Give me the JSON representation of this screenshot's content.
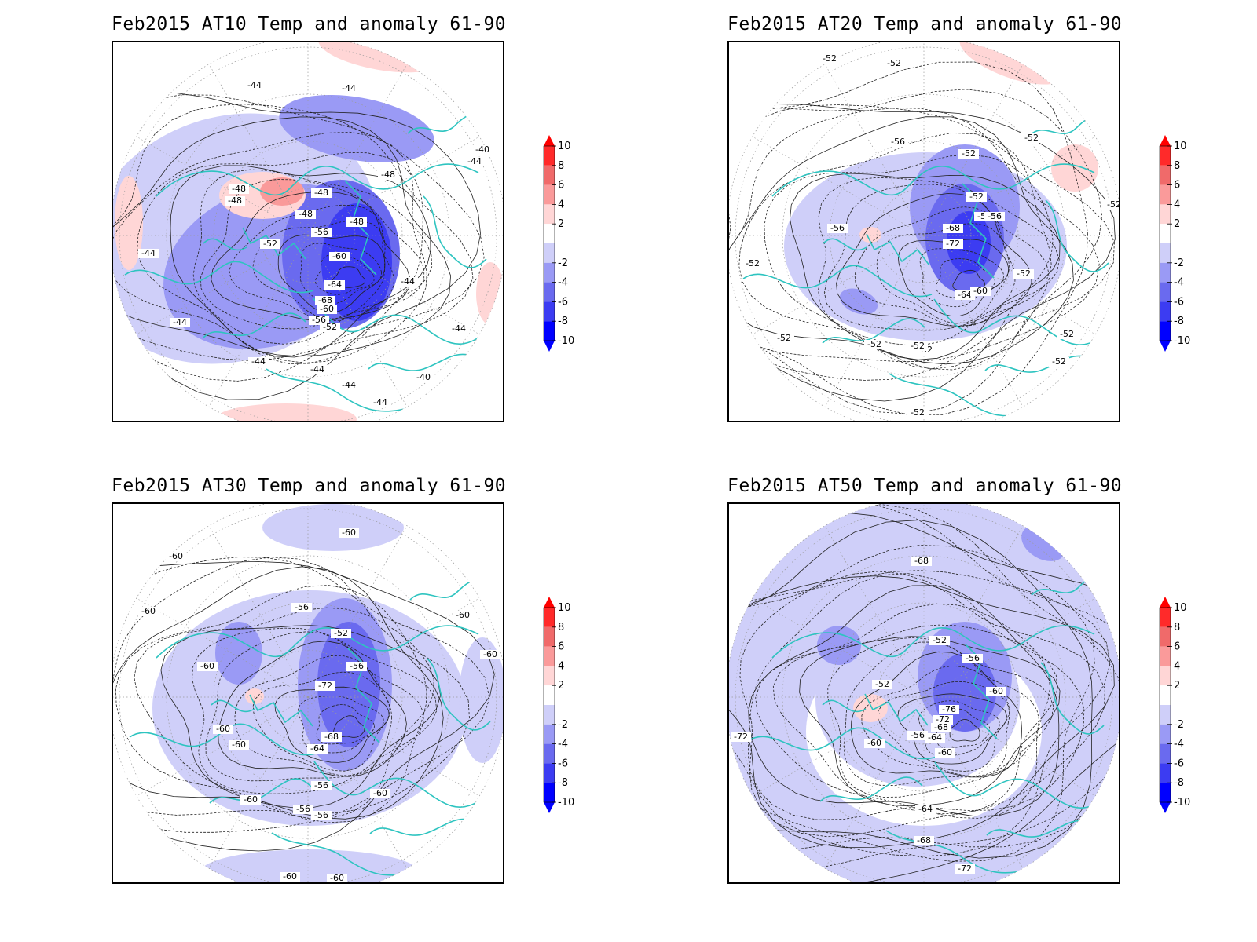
{
  "colors": {
    "coastline": "#2ec4c0",
    "contour": "#222222",
    "grid": "#9a9a9a",
    "scale": [
      "#0000ff",
      "#3c3cf2",
      "#6a6aef",
      "#9a9af5",
      "#cfcff9",
      "#ffffff",
      "#ffd6d6",
      "#fa9a9a",
      "#f06a6a",
      "#ff2a2a",
      "#ff0000"
    ]
  },
  "colorbar": {
    "ticks": [
      "10",
      "8",
      "6",
      "4",
      "2",
      "-2",
      "-4",
      "-6",
      "-8",
      "-10"
    ]
  },
  "panels": [
    {
      "id": "at10",
      "title": "Feb2015 AT10 Temp and anomaly 61-90",
      "contour_labels": [
        "-44",
        "-44",
        "-44",
        "-44",
        "-44",
        "-44",
        "-44",
        "-44",
        "-44",
        "-40",
        "-40",
        "-44",
        "-48",
        "-48",
        "-48",
        "-48",
        "-52",
        "-56",
        "-60",
        "-64",
        "-68",
        "-60",
        "-56",
        "-52",
        "-48",
        "-48",
        "-44"
      ]
    },
    {
      "id": "at20",
      "title": "Feb2015 AT20 Temp and anomaly 61-90",
      "contour_labels": [
        "-52",
        "-52",
        "-52",
        "-52",
        "-52",
        "-56",
        "-52",
        "-52",
        "-56",
        "-68",
        "-72",
        "-64",
        "-60",
        "-52",
        "-56",
        "-52",
        "-56",
        "-52",
        "-52",
        "-52",
        "-52",
        "-52",
        "-52"
      ]
    },
    {
      "id": "at30",
      "title": "Feb2015 AT30 Temp and anomaly 61-90",
      "contour_labels": [
        "-60",
        "-60",
        "-60",
        "-60",
        "-60",
        "-56",
        "-52",
        "-56",
        "-72",
        "-68",
        "-64",
        "-60",
        "-56",
        "-60",
        "-56",
        "-56",
        "-60",
        "-60",
        "-60",
        "-60",
        "-60"
      ]
    },
    {
      "id": "at50",
      "title": "Feb2015 AT50 Temp and anomaly 61-90",
      "contour_labels": [
        "-68",
        "-52",
        "-56",
        "-60",
        "-52",
        "-56",
        "-60",
        "-76",
        "-72",
        "-68",
        "-64",
        "-60",
        "-64",
        "-68",
        "-72",
        "-72"
      ]
    }
  ]
}
